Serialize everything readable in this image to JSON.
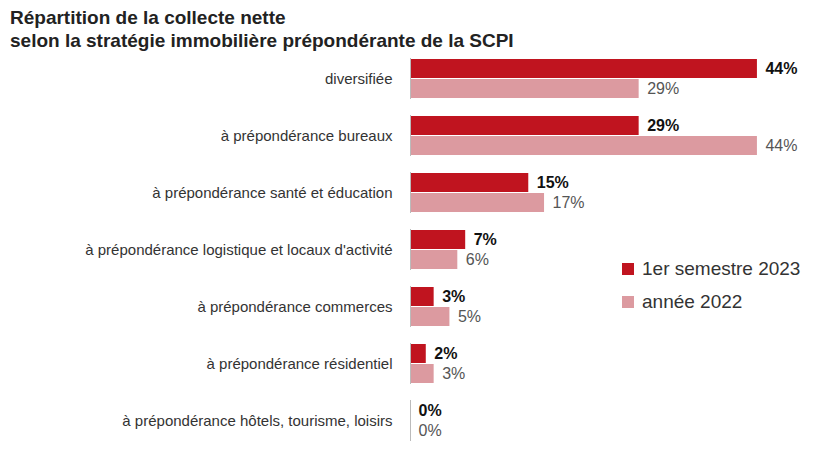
{
  "chart_data": {
    "type": "bar",
    "orientation": "horizontal",
    "title": "Répartition de la collecte nette\nselon la stratégie immobilière prépondérante de la SCPI",
    "categories": [
      "diversifiée",
      "à prépondérance bureaux",
      "à prépondérance santé et éducation",
      "à prépondérance logistique et locaux d'activité",
      "à prépondérance commerces",
      "à prépondérance résidentiel",
      "à prépondérance hôtels, tourisme, loisirs"
    ],
    "series": [
      {
        "name": "1er semestre 2023",
        "color": "#c0141f",
        "values": [
          44,
          29,
          15,
          7,
          3,
          2,
          0
        ],
        "value_labels": [
          "44%",
          "29%",
          "15%",
          "7%",
          "3%",
          "2%",
          "0%"
        ]
      },
      {
        "name": "année 2022",
        "color": "#dc9aa0",
        "values": [
          29,
          44,
          17,
          6,
          5,
          3,
          0
        ],
        "value_labels": [
          "29%",
          "44%",
          "17%",
          "6%",
          "5%",
          "3%",
          "0%"
        ]
      }
    ],
    "xlim": [
      0,
      52
    ],
    "xticks": [],
    "data_labels": true,
    "tick_labels": "y",
    "legend": "right",
    "grid": false
  }
}
